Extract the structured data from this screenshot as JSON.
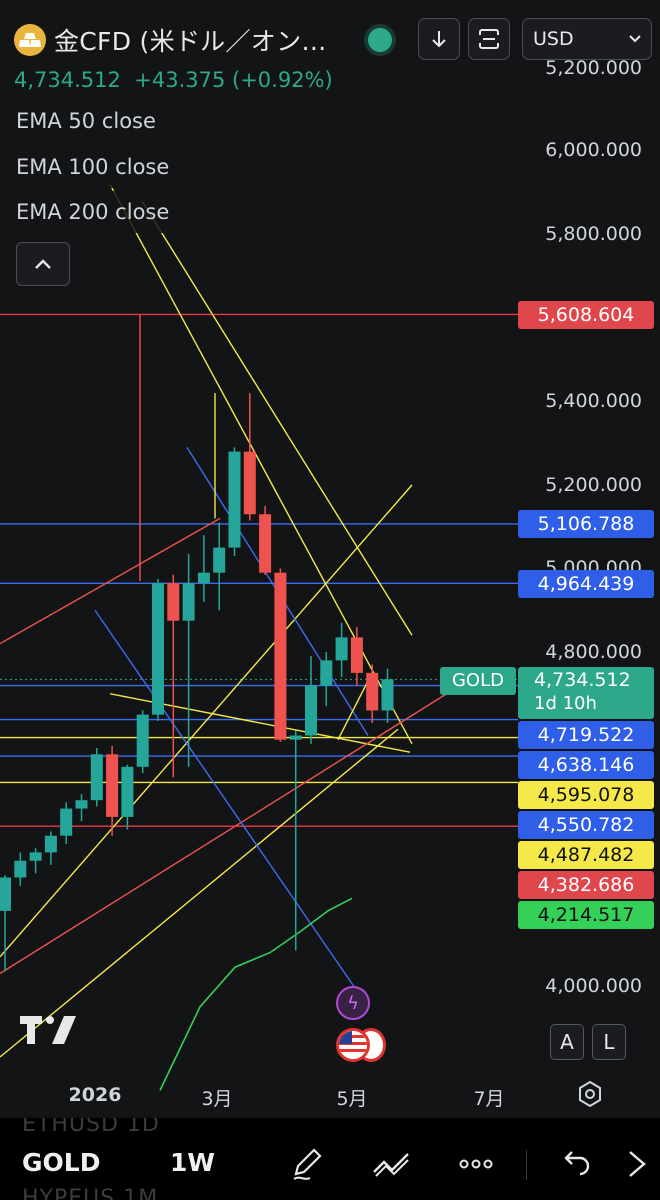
{
  "header": {
    "symbol_title": "金CFD (米ドル／オン…",
    "currency": "USD",
    "last_price": "4,734.512",
    "change": "+43.375",
    "change_pct": "(+0.92%)"
  },
  "legend": {
    "ema50": "EMA 50 close",
    "ema100": "EMA 100 close",
    "ema200": "EMA 200 close"
  },
  "y_ticks": {
    "t5200_cut": "5,200.000",
    "t6000": "6,000.000",
    "t5800": "5,800.000",
    "t5400": "5,400.000",
    "t5200": "5,200.000",
    "t5000": "5,000.000",
    "t4800": "4,800.000",
    "t4000": "4,000.000"
  },
  "price_labels": {
    "l5608": "5,608.604",
    "l5106": "5,106.788",
    "l4964": "4,964.439",
    "l4719": "4,719.522",
    "l4638": "4,638.146",
    "l4595": "4,595.078",
    "l4550": "4,550.782",
    "l4487": "4,487.482",
    "l4382": "4,382.686",
    "l4214": "4,214.517"
  },
  "last_price_box": {
    "tag": "GOLD",
    "value": "4,734.512",
    "countdown": "1d 10h"
  },
  "x_ticks": {
    "y2026": "2026",
    "mar": "3月",
    "may": "5月",
    "jul": "7月"
  },
  "controls": {
    "auto": "A",
    "log": "L"
  },
  "bottom_bar": {
    "symbol": "GOLD",
    "interval": "1W",
    "ghost1": "ETHUSD   1D",
    "ghost2": "HYPEUS   1M"
  },
  "colors": {
    "up": "#26a69a",
    "down": "#ef5350",
    "accent": "#2ea88a",
    "yellow": "#f5e94a",
    "blue": "#2962ff",
    "red": "#f23645",
    "green": "#34d058"
  },
  "chart_data": {
    "type": "candlestick",
    "symbol": "GOLD",
    "interval": "1W",
    "currency": "USD",
    "ylim": [
      3900,
      6100
    ],
    "x_ticks": [
      "2026",
      "3月",
      "5月",
      "7月"
    ],
    "candles": [
      {
        "o": 4180,
        "h": 4265,
        "l": 4035,
        "c": 4260
      },
      {
        "o": 4260,
        "h": 4320,
        "l": 4240,
        "c": 4300
      },
      {
        "o": 4300,
        "h": 4330,
        "l": 4270,
        "c": 4320
      },
      {
        "o": 4320,
        "h": 4370,
        "l": 4290,
        "c": 4360
      },
      {
        "o": 4360,
        "h": 4440,
        "l": 4340,
        "c": 4425
      },
      {
        "o": 4425,
        "h": 4460,
        "l": 4395,
        "c": 4445
      },
      {
        "o": 4445,
        "h": 4570,
        "l": 4430,
        "c": 4555
      },
      {
        "o": 4555,
        "h": 4575,
        "l": 4360,
        "c": 4405
      },
      {
        "o": 4405,
        "h": 4530,
        "l": 4375,
        "c": 4525
      },
      {
        "o": 4525,
        "h": 4660,
        "l": 4510,
        "c": 4650
      },
      {
        "o": 4650,
        "h": 4975,
        "l": 4635,
        "c": 4965
      },
      {
        "o": 4965,
        "h": 4985,
        "l": 4500,
        "c": 4875
      },
      {
        "o": 4875,
        "h": 5035,
        "l": 4525,
        "c": 4965
      },
      {
        "o": 4965,
        "h": 5080,
        "l": 4920,
        "c": 4990
      },
      {
        "o": 4990,
        "h": 5110,
        "l": 4900,
        "c": 5050
      },
      {
        "o": 5050,
        "h": 5290,
        "l": 5030,
        "c": 5280
      },
      {
        "o": 5280,
        "h": 5420,
        "l": 5115,
        "c": 5130
      },
      {
        "o": 5130,
        "h": 5150,
        "l": 4985,
        "c": 4990
      },
      {
        "o": 4990,
        "h": 5000,
        "l": 4585,
        "c": 4590
      },
      {
        "o": 4590,
        "h": 4612,
        "l": 4085,
        "c": 4600
      },
      {
        "o": 4600,
        "h": 4790,
        "l": 4580,
        "c": 4720
      },
      {
        "o": 4720,
        "h": 4800,
        "l": 4670,
        "c": 4780
      },
      {
        "o": 4780,
        "h": 4870,
        "l": 4740,
        "c": 4835
      },
      {
        "o": 4835,
        "h": 4860,
        "l": 4720,
        "c": 4750
      },
      {
        "o": 4750,
        "h": 4770,
        "l": 4630,
        "c": 4660
      },
      {
        "o": 4660,
        "h": 4760,
        "l": 4630,
        "c": 4734.512
      }
    ],
    "horizontal_levels": [
      {
        "value": 5608.604,
        "color": "red"
      },
      {
        "value": 5106.788,
        "color": "blue"
      },
      {
        "value": 4964.439,
        "color": "blue"
      },
      {
        "value": 4719.522,
        "color": "blue"
      },
      {
        "value": 4638.146,
        "color": "blue"
      },
      {
        "value": 4595.078,
        "color": "yellow"
      },
      {
        "value": 4550.782,
        "color": "blue"
      },
      {
        "value": 4487.482,
        "color": "yellow"
      },
      {
        "value": 4382.686,
        "color": "red"
      },
      {
        "value": 4214.517,
        "color": "green"
      }
    ],
    "last_price": 4734.512
  }
}
